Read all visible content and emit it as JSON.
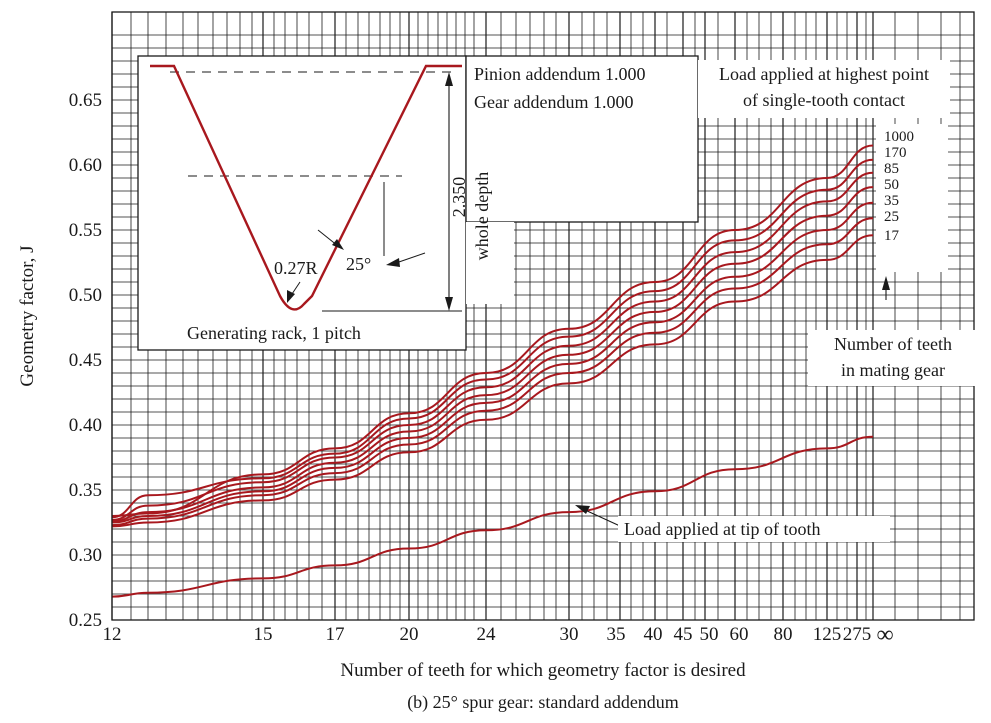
{
  "chart_data": {
    "type": "line",
    "ylabel": "Geometry factor, J",
    "xlabel": "Number of teeth for which geometry factor is desired",
    "caption": "(b) 25° spur gear: standard addendum",
    "ylim": [
      0.25,
      0.7
    ],
    "y_ticks": [
      0.25,
      0.3,
      0.35,
      0.4,
      0.45,
      0.5,
      0.55,
      0.6,
      0.65
    ],
    "y_tick_labels": [
      "0.25",
      "0.30",
      "0.35",
      "0.40",
      "0.45",
      "0.50",
      "0.55",
      "0.60",
      "0.65"
    ],
    "x_ticks": [
      12,
      15,
      17,
      20,
      24,
      30,
      35,
      40,
      45,
      50,
      60,
      80,
      125,
      275,
      "∞"
    ],
    "x_tick_labels": [
      "12",
      "15",
      "17",
      "20",
      "24",
      "30",
      "35",
      "40",
      "45",
      "50",
      "60",
      "80",
      "125",
      "275",
      "∞"
    ],
    "grid": true,
    "series": [
      {
        "name": "1000",
        "x": [
          12,
          13,
          15,
          17,
          20,
          24,
          30,
          40,
          60,
          125,
          "∞"
        ],
        "values": [
          0.33,
          0.332,
          0.362,
          0.382,
          0.409,
          0.44,
          0.474,
          0.51,
          0.55,
          0.59,
          0.615
        ]
      },
      {
        "name": "170",
        "x": [
          12,
          13,
          15,
          17,
          20,
          24,
          30,
          40,
          60,
          125,
          "∞"
        ],
        "values": [
          0.329,
          0.346,
          0.359,
          0.378,
          0.405,
          0.435,
          0.468,
          0.503,
          0.542,
          0.581,
          0.604
        ]
      },
      {
        "name": "85",
        "x": [
          12,
          13,
          15,
          17,
          20,
          24,
          30,
          40,
          60,
          125,
          "∞"
        ],
        "values": [
          0.327,
          0.338,
          0.356,
          0.375,
          0.4,
          0.429,
          0.461,
          0.495,
          0.533,
          0.572,
          0.594
        ]
      },
      {
        "name": "50",
        "x": [
          12,
          13,
          15,
          17,
          20,
          24,
          30,
          40,
          60,
          125,
          "∞"
        ],
        "values": [
          0.326,
          0.333,
          0.352,
          0.371,
          0.395,
          0.423,
          0.454,
          0.487,
          0.524,
          0.561,
          0.583
        ]
      },
      {
        "name": "35",
        "x": [
          12,
          13,
          15,
          17,
          20,
          24,
          30,
          40,
          60,
          125,
          "∞"
        ],
        "values": [
          0.325,
          0.33,
          0.349,
          0.367,
          0.39,
          0.417,
          0.447,
          0.479,
          0.514,
          0.55,
          0.571
        ]
      },
      {
        "name": "25",
        "x": [
          12,
          13,
          15,
          17,
          20,
          24,
          30,
          40,
          60,
          125,
          "∞"
        ],
        "values": [
          0.323,
          0.328,
          0.346,
          0.363,
          0.385,
          0.411,
          0.44,
          0.471,
          0.505,
          0.539,
          0.559
        ]
      },
      {
        "name": "17",
        "x": [
          12,
          13,
          15,
          17,
          20,
          24,
          30,
          40,
          60,
          125,
          "∞"
        ],
        "values": [
          0.322,
          0.325,
          0.342,
          0.358,
          0.379,
          0.404,
          0.432,
          0.462,
          0.495,
          0.527,
          0.546
        ]
      },
      {
        "name": "Load applied at tip of tooth",
        "x": [
          12,
          13,
          15,
          17,
          20,
          24,
          30,
          40,
          60,
          125,
          "∞"
        ],
        "values": [
          0.268,
          0.271,
          0.282,
          0.292,
          0.305,
          0.319,
          0.333,
          0.349,
          0.366,
          0.382,
          0.391
        ]
      }
    ],
    "annotations": {
      "load_highest": [
        "Load applied at highest point",
        "of single-tooth contact"
      ],
      "mating_gear": [
        "Number of teeth",
        "in mating gear"
      ],
      "tip_label": "Load applied at tip of tooth"
    },
    "inset": {
      "pinion_addendum": "Pinion addendum 1.000",
      "gear_addendum": "Gear addendum 1.000",
      "depth_value": "2.350",
      "depth_label": "whole depth",
      "radius_label": "0.27R",
      "angle_label": "25°",
      "rack_label": "Generating rack, 1 pitch"
    }
  },
  "colors": {
    "curve": "#a8181e",
    "grid": "#1a1a1a",
    "text": "#1a1a1a"
  }
}
